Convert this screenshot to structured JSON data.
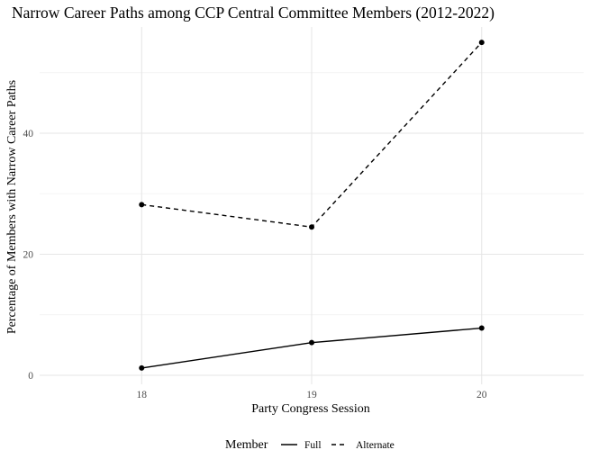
{
  "chart_data": {
    "type": "line",
    "title": "Narrow Career Paths among CCP Central Committee Members (2012-2022)",
    "xlabel": "Party Congress Session",
    "ylabel": "Percentage of Members with Narrow Career Paths",
    "categories": [
      "18",
      "19",
      "20"
    ],
    "x": [
      18,
      19,
      20
    ],
    "xlim": [
      17.4,
      20.6
    ],
    "ylim": [
      0,
      56
    ],
    "yticks": [
      0,
      20,
      40
    ],
    "grid": true,
    "legend": {
      "title": "Member",
      "position": "bottom"
    },
    "series": [
      {
        "name": "Full",
        "linetype": "solid",
        "values": [
          1.2,
          5.4,
          7.8
        ]
      },
      {
        "name": "Alternate",
        "linetype": "dashed",
        "values": [
          28.2,
          24.5,
          55.0
        ]
      }
    ],
    "colors": {
      "line": "#000000",
      "point": "#000000",
      "grid": "#e6e6e6"
    }
  }
}
